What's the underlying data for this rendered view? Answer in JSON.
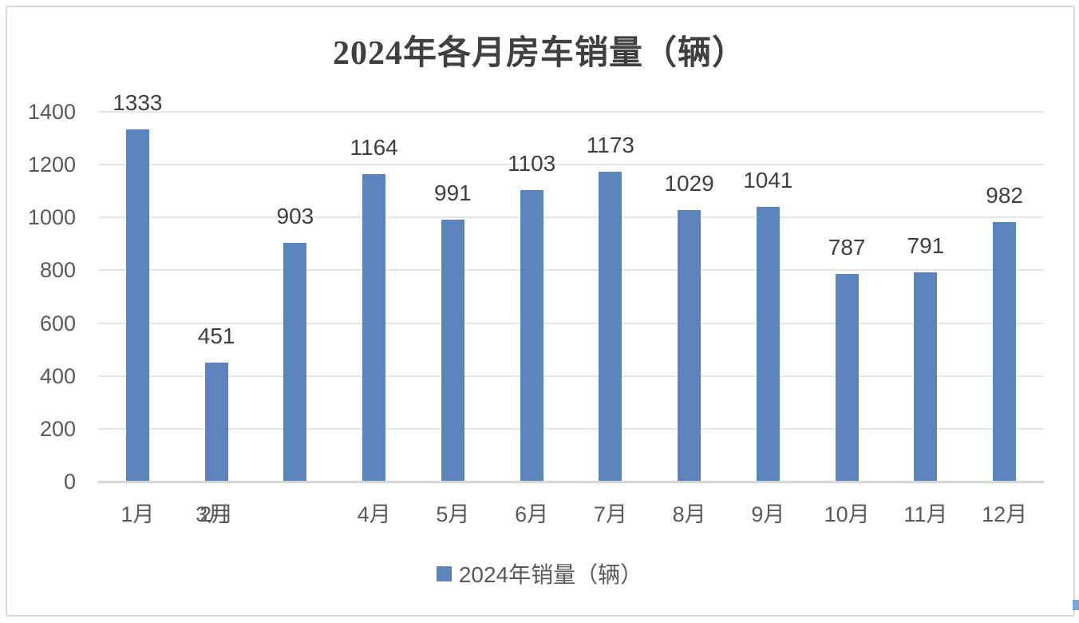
{
  "title": "2024年各月房车销量（辆）",
  "legend": {
    "label": "2024年销量（辆）",
    "marker_color": "#5b83bc"
  },
  "colors": {
    "bar": "#5b83bc",
    "grid": "#e6e6e6",
    "axis_line": "#d6d6d6",
    "data_label": "#404040",
    "axis_text": "#595959",
    "frame_border": "#d9d9d9"
  },
  "chart_data": {
    "type": "bar",
    "title": "2024年各月房车销量（辆）",
    "categories": [
      "1月",
      "2月",
      "3月",
      "4月",
      "5月",
      "6月",
      "7月",
      "8月",
      "9月",
      "10月",
      "11月",
      "12月"
    ],
    "series": [
      {
        "name": "2024年销量（辆）",
        "values": [
          1333,
          451,
          903,
          1164,
          991,
          1103,
          1173,
          1029,
          1041,
          787,
          791,
          982
        ]
      }
    ],
    "data_labels": true,
    "xlabel": "",
    "ylabel": "",
    "ylim": [
      0,
      1400
    ],
    "yticks": [
      0,
      200,
      400,
      600,
      800,
      1000,
      1200,
      1400
    ],
    "grid": true,
    "legend_position": "bottom",
    "x_label_overrides": [
      {
        "index": 2,
        "drawn_at_slot": 1,
        "dx": -5,
        "note": "3月 label is drawn overlapping the 2月 label position"
      }
    ]
  }
}
